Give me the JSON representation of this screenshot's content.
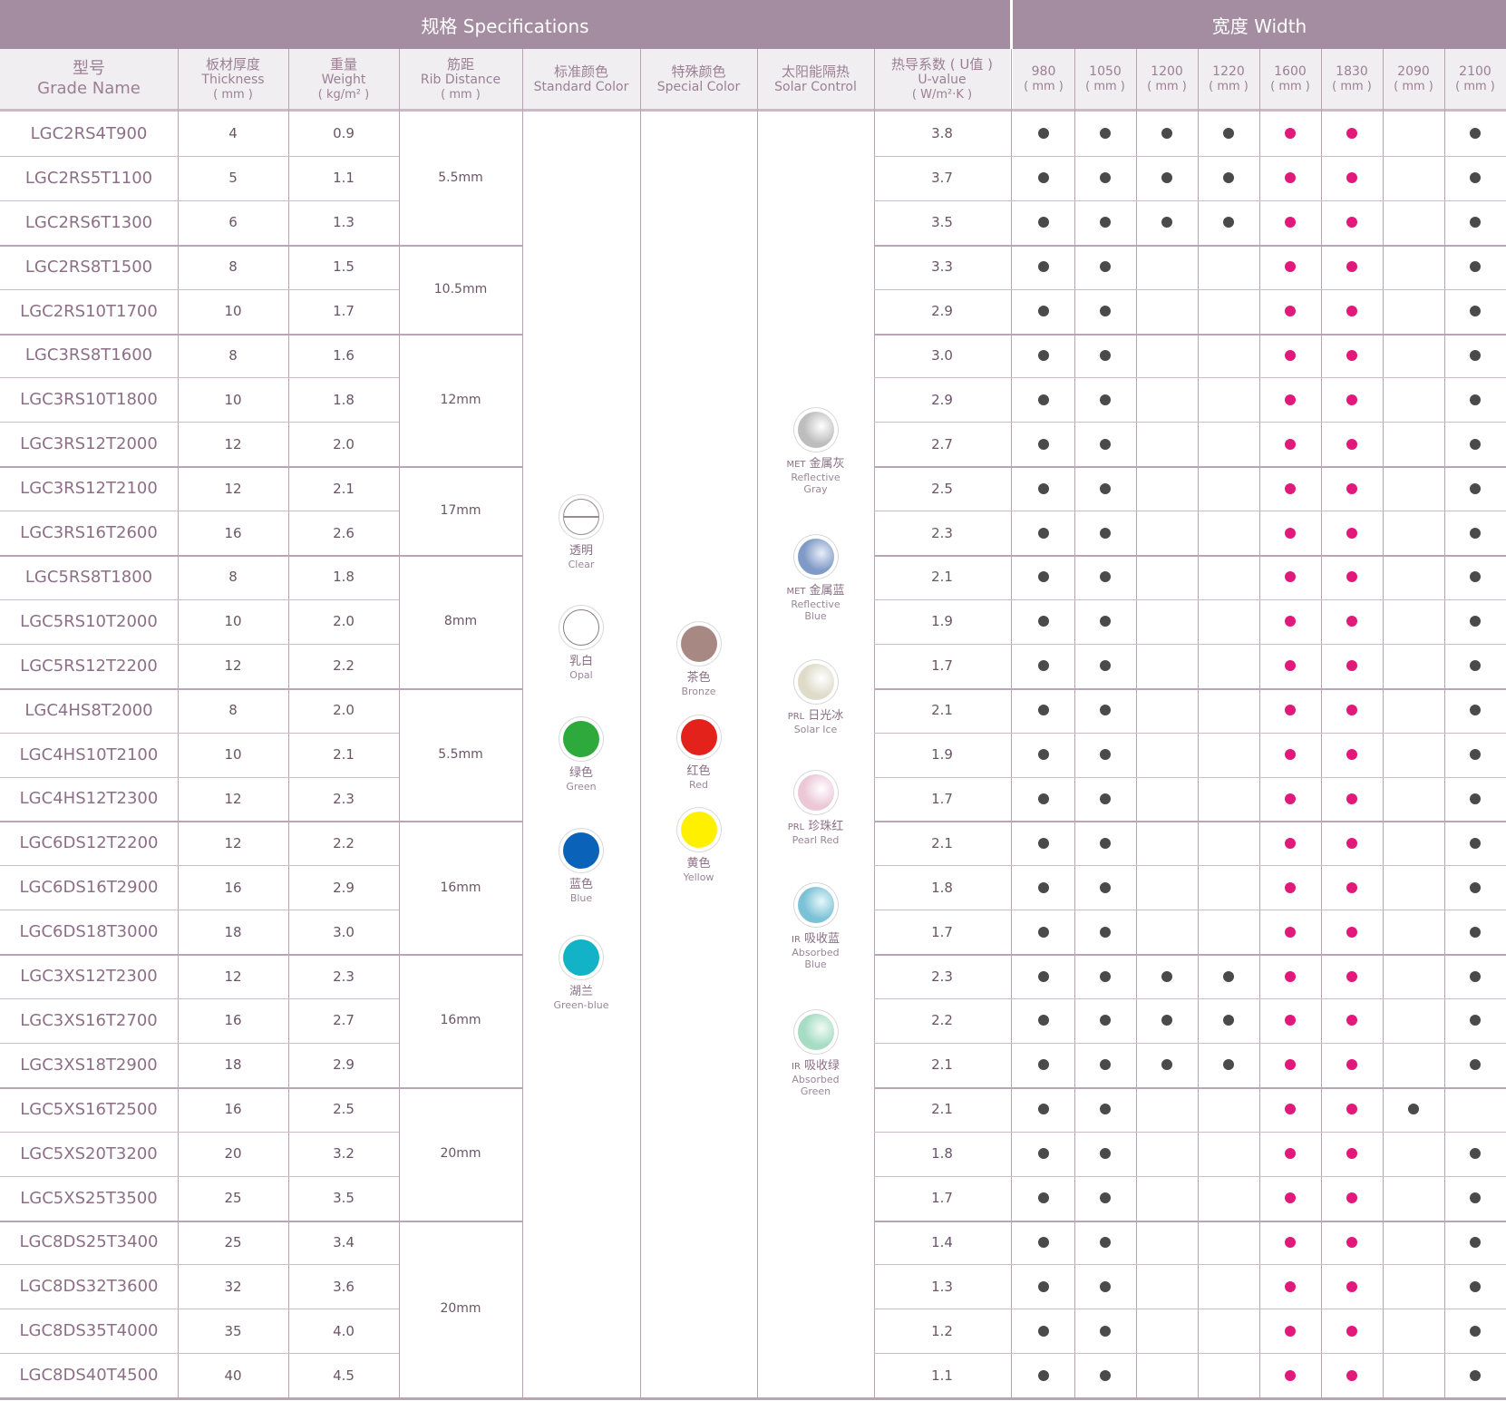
{
  "header": {
    "specifications": "规格  Specifications",
    "width": "宽度 Width"
  },
  "columns": {
    "grade": {
      "zh": "型号",
      "en": "Grade Name"
    },
    "thickness": {
      "zh": "板材厚度",
      "en": "Thickness",
      "unit": "( mm )"
    },
    "weight": {
      "zh": "重量",
      "en": "Weight",
      "unit": "( kg/m² )"
    },
    "rib": {
      "zh": "筋距",
      "en": "Rib Distance",
      "unit": "( mm )"
    },
    "standard_color": {
      "zh": "标准颜色",
      "en": "Standard Color"
    },
    "special_color": {
      "zh": "特殊颜色",
      "en": "Special Color"
    },
    "solar": {
      "zh": "太阳能隔热",
      "en": "Solar Control"
    },
    "uvalue": {
      "zh": "热导系数 ( U值 )",
      "en": "U-value",
      "unit": "( W/m²·K )"
    },
    "widths": [
      {
        "value": "980",
        "unit": "( mm )"
      },
      {
        "value": "1050",
        "unit": "( mm )"
      },
      {
        "value": "1200",
        "unit": "( mm )"
      },
      {
        "value": "1220",
        "unit": "( mm )"
      },
      {
        "value": "1600",
        "unit": "( mm )"
      },
      {
        "value": "1830",
        "unit": "( mm )"
      },
      {
        "value": "2090",
        "unit": "( mm )"
      },
      {
        "value": "2100",
        "unit": "( mm )"
      }
    ]
  },
  "rows": [
    {
      "grade": "LGC2RS4T900",
      "thickness": "4",
      "weight": "0.9",
      "u": "3.8",
      "avail": [
        "d",
        "d",
        "d",
        "d",
        "p",
        "p",
        "",
        "d"
      ]
    },
    {
      "grade": "LGC2RS5T1100",
      "thickness": "5",
      "weight": "1.1",
      "u": "3.7",
      "avail": [
        "d",
        "d",
        "d",
        "d",
        "p",
        "p",
        "",
        "d"
      ]
    },
    {
      "grade": "LGC2RS6T1300",
      "thickness": "6",
      "weight": "1.3",
      "u": "3.5",
      "avail": [
        "d",
        "d",
        "d",
        "d",
        "p",
        "p",
        "",
        "d"
      ]
    },
    {
      "grade": "LGC2RS8T1500",
      "thickness": "8",
      "weight": "1.5",
      "u": "3.3",
      "avail": [
        "d",
        "d",
        "",
        "",
        "p",
        "p",
        "",
        "d"
      ]
    },
    {
      "grade": "LGC2RS10T1700",
      "thickness": "10",
      "weight": "1.7",
      "u": "2.9",
      "avail": [
        "d",
        "d",
        "",
        "",
        "p",
        "p",
        "",
        "d"
      ]
    },
    {
      "grade": "LGC3RS8T1600",
      "thickness": "8",
      "weight": "1.6",
      "u": "3.0",
      "avail": [
        "d",
        "d",
        "",
        "",
        "p",
        "p",
        "",
        "d"
      ]
    },
    {
      "grade": "LGC3RS10T1800",
      "thickness": "10",
      "weight": "1.8",
      "u": "2.9",
      "avail": [
        "d",
        "d",
        "",
        "",
        "p",
        "p",
        "",
        "d"
      ]
    },
    {
      "grade": "LGC3RS12T2000",
      "thickness": "12",
      "weight": "2.0",
      "u": "2.7",
      "avail": [
        "d",
        "d",
        "",
        "",
        "p",
        "p",
        "",
        "d"
      ]
    },
    {
      "grade": "LGC3RS12T2100",
      "thickness": "12",
      "weight": "2.1",
      "u": "2.5",
      "avail": [
        "d",
        "d",
        "",
        "",
        "p",
        "p",
        "",
        "d"
      ]
    },
    {
      "grade": "LGC3RS16T2600",
      "thickness": "16",
      "weight": "2.6",
      "u": "2.3",
      "avail": [
        "d",
        "d",
        "",
        "",
        "p",
        "p",
        "",
        "d"
      ]
    },
    {
      "grade": "LGC5RS8T1800",
      "thickness": "8",
      "weight": "1.8",
      "u": "2.1",
      "avail": [
        "d",
        "d",
        "",
        "",
        "p",
        "p",
        "",
        "d"
      ]
    },
    {
      "grade": "LGC5RS10T2000",
      "thickness": "10",
      "weight": "2.0",
      "u": "1.9",
      "avail": [
        "d",
        "d",
        "",
        "",
        "p",
        "p",
        "",
        "d"
      ]
    },
    {
      "grade": "LGC5RS12T2200",
      "thickness": "12",
      "weight": "2.2",
      "u": "1.7",
      "avail": [
        "d",
        "d",
        "",
        "",
        "p",
        "p",
        "",
        "d"
      ]
    },
    {
      "grade": "LGC4HS8T2000",
      "thickness": "8",
      "weight": "2.0",
      "u": "2.1",
      "avail": [
        "d",
        "d",
        "",
        "",
        "p",
        "p",
        "",
        "d"
      ]
    },
    {
      "grade": "LGC4HS10T2100",
      "thickness": "10",
      "weight": "2.1",
      "u": "1.9",
      "avail": [
        "d",
        "d",
        "",
        "",
        "p",
        "p",
        "",
        "d"
      ]
    },
    {
      "grade": "LGC4HS12T2300",
      "thickness": "12",
      "weight": "2.3",
      "u": "1.7",
      "avail": [
        "d",
        "d",
        "",
        "",
        "p",
        "p",
        "",
        "d"
      ]
    },
    {
      "grade": "LGC6DS12T2200",
      "thickness": "12",
      "weight": "2.2",
      "u": "2.1",
      "avail": [
        "d",
        "d",
        "",
        "",
        "p",
        "p",
        "",
        "d"
      ]
    },
    {
      "grade": "LGC6DS16T2900",
      "thickness": "16",
      "weight": "2.9",
      "u": "1.8",
      "avail": [
        "d",
        "d",
        "",
        "",
        "p",
        "p",
        "",
        "d"
      ]
    },
    {
      "grade": "LGC6DS18T3000",
      "thickness": "18",
      "weight": "3.0",
      "u": "1.7",
      "avail": [
        "d",
        "d",
        "",
        "",
        "p",
        "p",
        "",
        "d"
      ]
    },
    {
      "grade": "LGC3XS12T2300",
      "thickness": "12",
      "weight": "2.3",
      "u": "2.3",
      "avail": [
        "d",
        "d",
        "d",
        "d",
        "p",
        "p",
        "",
        "d"
      ]
    },
    {
      "grade": "LGC3XS16T2700",
      "thickness": "16",
      "weight": "2.7",
      "u": "2.2",
      "avail": [
        "d",
        "d",
        "d",
        "d",
        "p",
        "p",
        "",
        "d"
      ]
    },
    {
      "grade": "LGC3XS18T2900",
      "thickness": "18",
      "weight": "2.9",
      "u": "2.1",
      "avail": [
        "d",
        "d",
        "d",
        "d",
        "p",
        "p",
        "",
        "d"
      ]
    },
    {
      "grade": "LGC5XS16T2500",
      "thickness": "16",
      "weight": "2.5",
      "u": "2.1",
      "avail": [
        "d",
        "d",
        "",
        "",
        "p",
        "p",
        "d",
        ""
      ]
    },
    {
      "grade": "LGC5XS20T3200",
      "thickness": "20",
      "weight": "3.2",
      "u": "1.8",
      "avail": [
        "d",
        "d",
        "",
        "",
        "p",
        "p",
        "",
        "d"
      ]
    },
    {
      "grade": "LGC5XS25T3500",
      "thickness": "25",
      "weight": "3.5",
      "u": "1.7",
      "avail": [
        "d",
        "d",
        "",
        "",
        "p",
        "p",
        "",
        "d"
      ]
    },
    {
      "grade": "LGC8DS25T3400",
      "thickness": "25",
      "weight": "3.4",
      "u": "1.4",
      "avail": [
        "d",
        "d",
        "",
        "",
        "p",
        "p",
        "",
        "d"
      ]
    },
    {
      "grade": "LGC8DS32T3600",
      "thickness": "32",
      "weight": "3.6",
      "u": "1.3",
      "avail": [
        "d",
        "d",
        "",
        "",
        "p",
        "p",
        "",
        "d"
      ]
    },
    {
      "grade": "LGC8DS35T4000",
      "thickness": "35",
      "weight": "4.0",
      "u": "1.2",
      "avail": [
        "d",
        "d",
        "",
        "",
        "p",
        "p",
        "",
        "d"
      ]
    },
    {
      "grade": "LGC8DS40T4500",
      "thickness": "40",
      "weight": "4.5",
      "u": "1.1",
      "avail": [
        "d",
        "d",
        "",
        "",
        "p",
        "p",
        "",
        "d"
      ]
    }
  ],
  "rib_groups": [
    {
      "label": "5.5mm",
      "rows": 3
    },
    {
      "label": "10.5mm",
      "rows": 2
    },
    {
      "label": "12mm",
      "rows": 3
    },
    {
      "label": "17mm",
      "rows": 2
    },
    {
      "label": "8mm",
      "rows": 3
    },
    {
      "label": "5.5mm",
      "rows": 3
    },
    {
      "label": "16mm",
      "rows": 3
    },
    {
      "label": "16mm",
      "rows": 3
    },
    {
      "label": "20mm",
      "rows": 3
    },
    {
      "label": "20mm",
      "rows": 4
    }
  ],
  "standard_colors": [
    {
      "zh": "透明",
      "en": "Clear",
      "color": "#ffffff",
      "style": "clear"
    },
    {
      "zh": "乳白",
      "en": "Opal",
      "color": "#ffffff",
      "style": "opal"
    },
    {
      "zh": "绿色",
      "en": "Green",
      "color": "#2eaa3c",
      "style": "solid"
    },
    {
      "zh": "蓝色",
      "en": "Blue",
      "color": "#0a63b8",
      "style": "solid"
    },
    {
      "zh": "湖兰",
      "en": "Green-blue",
      "color": "#12b3c7",
      "style": "solid"
    }
  ],
  "special_colors": [
    {
      "zh": "茶色",
      "en": "Bronze",
      "color": "#a88883"
    },
    {
      "zh": "红色",
      "en": "Red",
      "color": "#e3221b"
    },
    {
      "zh": "黄色",
      "en": "Yellow",
      "color": "#fff000"
    }
  ],
  "solar_colors": [
    {
      "prefix": "MET",
      "zh": "金属灰",
      "en1": "Reflective",
      "en2": "Gray",
      "color": "#bdbdbd",
      "accent": "#ffffff"
    },
    {
      "prefix": "MET",
      "zh": "金属蓝",
      "en1": "Reflective",
      "en2": "Blue",
      "color": "#7f9ac7",
      "accent": "#e9eef7"
    },
    {
      "prefix": "PRL",
      "zh": "日光冰",
      "en1": "Solar Ice",
      "en2": "",
      "color": "#dedbc8",
      "accent": "#ffffff"
    },
    {
      "prefix": "PRL",
      "zh": "珍珠红",
      "en1": "Pearl Red",
      "en2": "",
      "color": "#ecc7d6",
      "accent": "#ffffff"
    },
    {
      "prefix": "IR",
      "zh": "吸收蓝",
      "en1": "Absorbed",
      "en2": "Blue",
      "color": "#7cc2d6",
      "accent": "#e8f7fb"
    },
    {
      "prefix": "IR",
      "zh": "吸收绿",
      "en1": "Absorbed",
      "en2": "Green",
      "color": "#a6dcc3",
      "accent": "#f1fbf6"
    }
  ],
  "colors": {
    "header_bg": "#a48da0",
    "dot_dark": "#4a4a4a",
    "dot_pink": "#e2187b"
  }
}
